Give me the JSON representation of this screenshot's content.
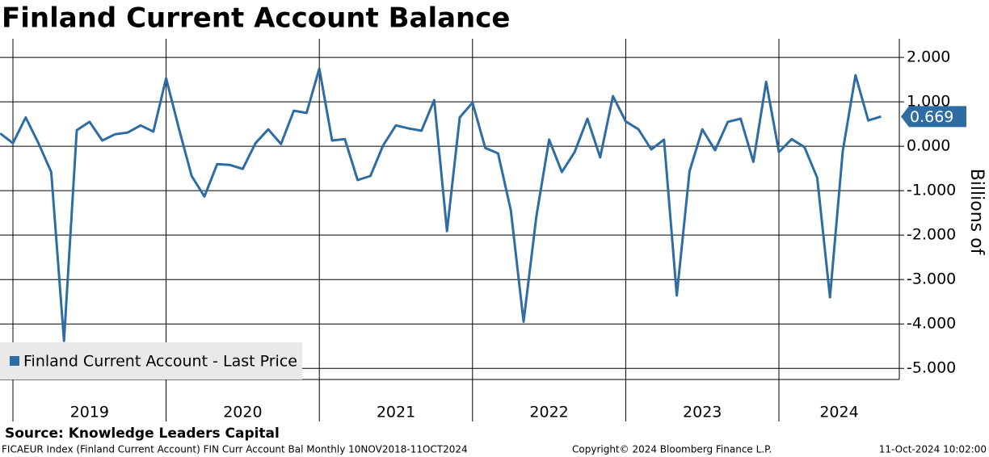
{
  "chart_data": {
    "type": "line",
    "title": "Finland Current Account Balance",
    "y_label": "Billions of",
    "source": "Source: Knowledge Leaders Capital",
    "footer_left": "FICAEUR Index (Finland Current Account) FIN Curr Account Bal  Monthly 10NOV2018-11OCT2024",
    "footer_center": "Copyright© 2024 Bloomberg Finance L.P.",
    "footer_right": "11-Oct-2024 10:02:00",
    "year_labels": [
      "2019",
      "2020",
      "2021",
      "2022",
      "2023",
      "2024"
    ],
    "series": [
      {
        "name": "Finland Current Account - Last Price",
        "color": "#2e6ca4",
        "values": [
          0.29,
          0.07,
          0.65,
          0.07,
          -0.58,
          -4.38,
          0.36,
          0.55,
          0.13,
          0.27,
          0.31,
          0.47,
          0.33,
          1.53,
          0.4,
          -0.67,
          -1.13,
          -0.4,
          -0.42,
          -0.51,
          0.07,
          0.38,
          0.05,
          0.8,
          0.75,
          1.75,
          0.13,
          0.16,
          -0.76,
          -0.67,
          0.02,
          0.47,
          0.4,
          0.35,
          1.04,
          -1.91,
          0.65,
          0.98,
          -0.04,
          -0.16,
          -1.44,
          -3.95,
          -1.58,
          0.15,
          -0.58,
          -0.13,
          0.62,
          -0.25,
          1.13,
          0.56,
          0.38,
          -0.07,
          0.15,
          -3.36,
          -0.56,
          0.38,
          -0.09,
          0.55,
          0.62,
          -0.35,
          1.45,
          -0.13,
          0.16,
          -0.02,
          -0.71,
          -3.4,
          -0.11,
          1.6,
          0.58,
          0.669
        ]
      }
    ],
    "ylim": [
      -5.25,
      2.42
    ],
    "yticks": [
      {
        "value": 2,
        "label": "2.000"
      },
      {
        "value": 1,
        "label": "1.000"
      },
      {
        "value": 0,
        "label": "0.000"
      },
      {
        "value": -1,
        "label": "-1.000"
      },
      {
        "value": -2,
        "label": "-2.000"
      },
      {
        "value": -3,
        "label": "-3.000"
      },
      {
        "value": -4,
        "label": "-4.000"
      },
      {
        "value": -5,
        "label": "-5.000"
      }
    ],
    "grid": true
  }
}
